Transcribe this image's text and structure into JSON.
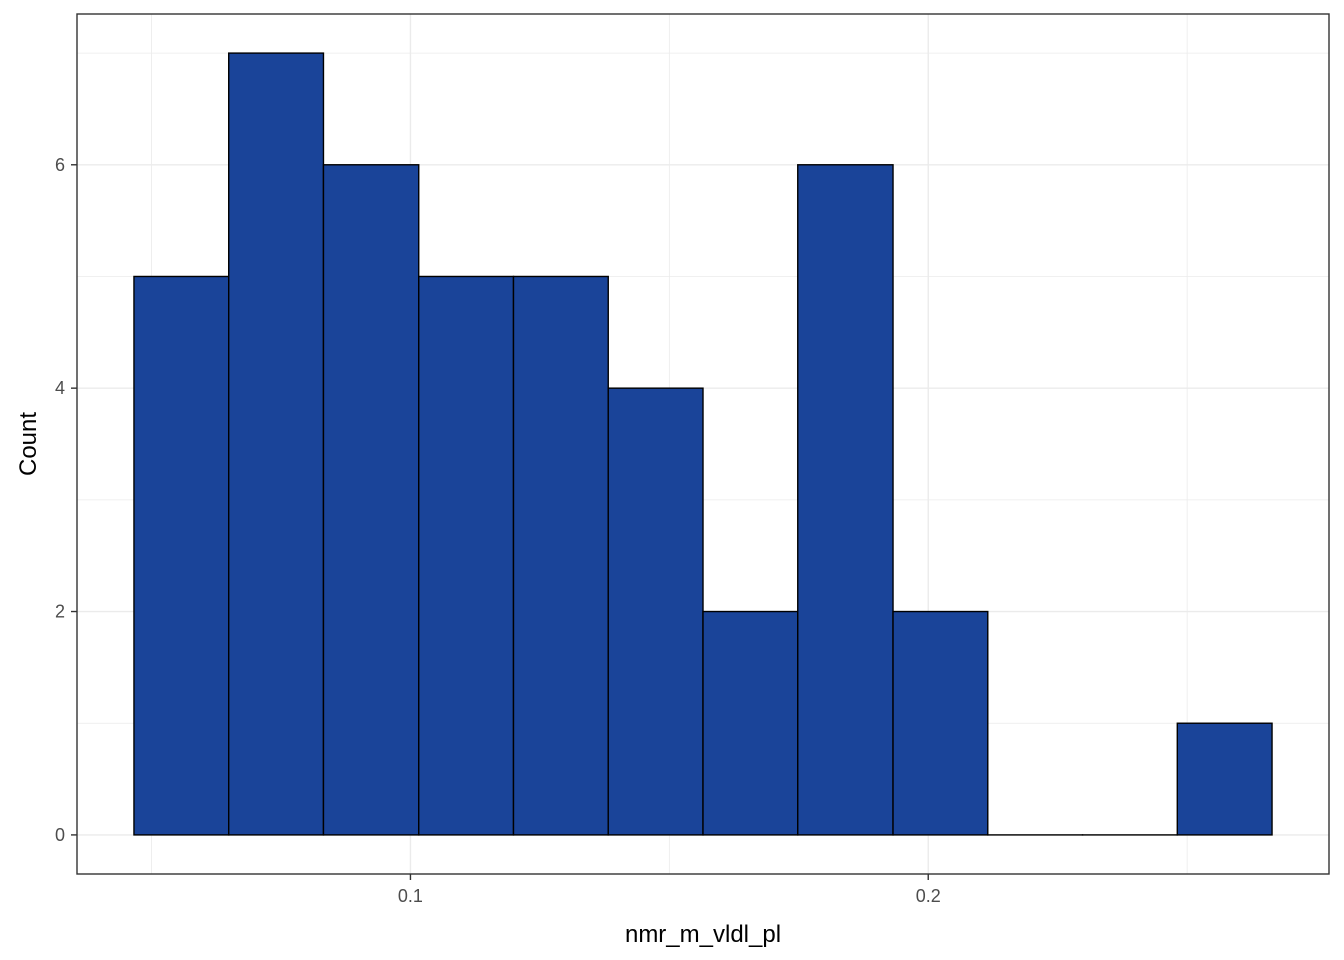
{
  "chart_data": {
    "type": "bar",
    "subtype": "histogram",
    "xlabel": "nmr_m_vldl_pl",
    "ylabel": "Count",
    "bin_width": 0.01832,
    "bins": [
      {
        "x0": 0.0466,
        "x1": 0.0649,
        "count": 5
      },
      {
        "x0": 0.0649,
        "x1": 0.0832,
        "count": 7
      },
      {
        "x0": 0.0832,
        "x1": 0.1016,
        "count": 6
      },
      {
        "x0": 0.1016,
        "x1": 0.1199,
        "count": 5
      },
      {
        "x0": 0.1199,
        "x1": 0.1382,
        "count": 5
      },
      {
        "x0": 0.1382,
        "x1": 0.1565,
        "count": 4
      },
      {
        "x0": 0.1565,
        "x1": 0.1748,
        "count": 2
      },
      {
        "x0": 0.1748,
        "x1": 0.1932,
        "count": 6
      },
      {
        "x0": 0.1932,
        "x1": 0.2115,
        "count": 2
      },
      {
        "x0": 0.2115,
        "x1": 0.2298,
        "count": 0
      },
      {
        "x0": 0.2298,
        "x1": 0.2481,
        "count": 0
      },
      {
        "x0": 0.2481,
        "x1": 0.2664,
        "count": 1
      }
    ],
    "xlim": [
      0.0356,
      0.2774
    ],
    "ylim": [
      -0.35,
      7.35
    ],
    "x_ticks": [
      {
        "value": 0.1,
        "label": "0.1"
      },
      {
        "value": 0.2,
        "label": "0.2"
      }
    ],
    "x_minor_ticks": [
      0.05,
      0.15,
      0.25
    ],
    "y_ticks": [
      {
        "value": 0,
        "label": "0"
      },
      {
        "value": 2,
        "label": "2"
      },
      {
        "value": 4,
        "label": "4"
      },
      {
        "value": 6,
        "label": "6"
      }
    ],
    "y_minor_ticks": [
      1,
      3,
      5,
      7
    ],
    "grid": true,
    "legend": "none",
    "bar_fill_color": "#1a4499",
    "bar_outline_color": "#000000",
    "panel_border_color": "#333333",
    "grid_color": "#ebebeb"
  }
}
